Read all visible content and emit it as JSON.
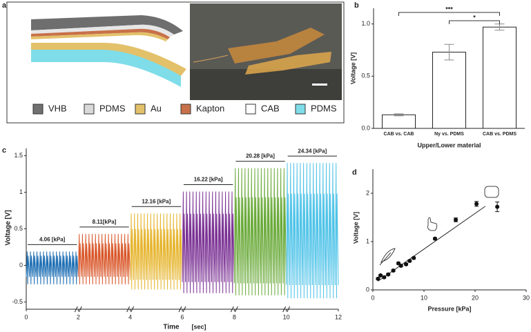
{
  "figure": {
    "panel_labels": [
      "a",
      "b",
      "c",
      "d"
    ]
  },
  "panel_a": {
    "legend": [
      {
        "label": "VHB",
        "color": "#707070"
      },
      {
        "label": "PDMS",
        "color": "#d9d9d9"
      },
      {
        "label": "Au",
        "color": "#e3c16a"
      },
      {
        "label": "Kapton",
        "color": "#c8714a"
      },
      {
        "label": "CAB",
        "color": "#ffffff"
      },
      {
        "label": "PDMS",
        "color": "#7fdde9"
      }
    ]
  },
  "chart_data": [
    {
      "type": "bar",
      "categories": [
        "CAB vs. CAB",
        "Ny vs. PDMS",
        "CAB vs. PDMS"
      ],
      "values": [
        0.13,
        0.73,
        0.97
      ],
      "errors": [
        0.01,
        0.075,
        0.03
      ],
      "color": "#ffffff",
      "ylim": [
        0,
        1.15
      ],
      "yticks": [
        {
          "value": 0,
          "label": "0.0"
        },
        {
          "value": 0.5,
          "label": "0.5"
        },
        {
          "value": 1,
          "label": "1.0"
        }
      ],
      "xlabel": "Upper/Lower material",
      "ylabel": "Voltage [V]",
      "brackets": [
        {
          "label": "***",
          "between": [
            "CAB vs. CAB",
            "CAB vs. PDMS"
          ]
        },
        {
          "label": "*",
          "between": [
            "Ny vs. PDMS",
            "CAB vs. PDMS"
          ]
        }
      ]
    },
    {
      "type": "line",
      "xlabel": "Time",
      "xunit": "[sec]",
      "ylabel": "Voltage [V]",
      "xlim": [
        0,
        12
      ],
      "ylim": [
        -0.6,
        1.6
      ],
      "xticks": [
        0,
        2,
        4,
        6,
        8,
        10,
        12
      ],
      "yticks": [
        -0.5,
        0,
        0.5,
        1,
        1.5
      ],
      "series": [
        {
          "name": "4.06 [kPa]",
          "color": "#1f6fb4",
          "x": [
            0,
            2
          ],
          "peak": 0.19,
          "trough": -0.26
        },
        {
          "name": "8.11[kPa]",
          "color": "#d9572a",
          "x": [
            2,
            4
          ],
          "peak": 0.43,
          "trough": -0.26
        },
        {
          "name": "12.16 [kPa]",
          "color": "#e6b52e",
          "x": [
            4,
            6
          ],
          "peak": 0.71,
          "trough": -0.33
        },
        {
          "name": "16.22 [kPa]",
          "color": "#7b3294",
          "x": [
            6,
            8
          ],
          "peak": 1.01,
          "trough": -0.38
        },
        {
          "name": "20.28 [kPa]",
          "color": "#6aaa3a",
          "x": [
            8,
            10
          ],
          "peak": 1.33,
          "trough": -0.41
        },
        {
          "name": "24.34 [kPa]",
          "color": "#4fc3e8",
          "x": [
            10,
            12
          ],
          "peak": 1.4,
          "trough": -0.45
        }
      ]
    },
    {
      "type": "scatter",
      "xlabel": "Pressure [kPa]",
      "ylabel": "Voltage [V]",
      "xlim": [
        0,
        30
      ],
      "ylim": [
        0,
        2.5
      ],
      "xticks": [
        0,
        10,
        20,
        30
      ],
      "yticks": [
        0,
        1,
        2
      ],
      "color": "#111111",
      "x": [
        1,
        1.5,
        2.2,
        3,
        4,
        5,
        5.5,
        6.5,
        7.2,
        8,
        12.16,
        16.22,
        20.28,
        24.34
      ],
      "values": [
        0.23,
        0.3,
        0.26,
        0.32,
        0.4,
        0.55,
        0.5,
        0.53,
        0.6,
        0.66,
        1.06,
        1.45,
        1.78,
        1.72
      ],
      "errors": [
        0.02,
        0.02,
        0.02,
        0.02,
        0.02,
        0.02,
        0.02,
        0.02,
        0.02,
        0.02,
        0.02,
        0.04,
        0.05,
        0.1
      ],
      "fit": {
        "x": [
          1,
          22
        ],
        "values": [
          0.18,
          1.73
        ]
      }
    }
  ]
}
